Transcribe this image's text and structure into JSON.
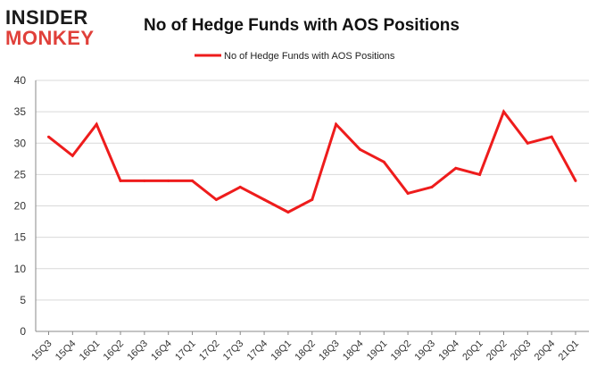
{
  "logo": {
    "line1": "INSIDER",
    "line2": "MONKEY"
  },
  "chart_data": {
    "type": "line",
    "title": "No of Hedge Funds with AOS Positions",
    "xlabel": "",
    "ylabel": "",
    "categories": [
      "15Q3",
      "15Q4",
      "16Q1",
      "16Q2",
      "16Q3",
      "16Q4",
      "17Q1",
      "17Q2",
      "17Q3",
      "17Q4",
      "18Q1",
      "18Q2",
      "18Q3",
      "18Q4",
      "19Q1",
      "19Q2",
      "19Q3",
      "19Q4",
      "20Q1",
      "20Q2",
      "20Q3",
      "20Q4",
      "21Q1"
    ],
    "series": [
      {
        "name": "No of Hedge Funds with AOS Positions",
        "color": "#ee1c1c",
        "values": [
          31,
          28,
          33,
          24,
          24,
          24,
          24,
          21,
          23,
          21,
          19,
          21,
          33,
          29,
          27,
          22,
          23,
          26,
          25,
          35,
          30,
          31,
          24
        ]
      }
    ],
    "ylim": [
      0,
      40
    ],
    "yticks": [
      0,
      5,
      10,
      15,
      20,
      25,
      30,
      35,
      40
    ],
    "grid": true,
    "legend": "top-center"
  }
}
